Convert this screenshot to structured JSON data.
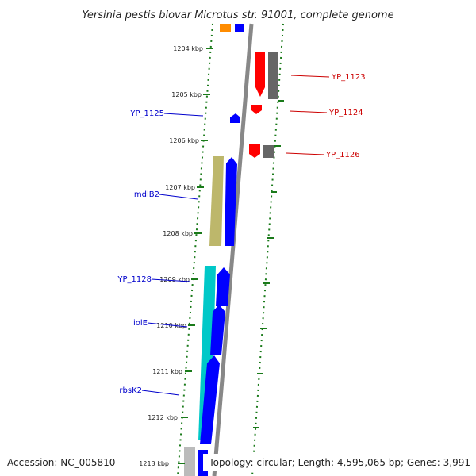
{
  "title": "Yersinia pestis biovar Microtus str. 91001, complete genome",
  "footer": {
    "accession": "Accession: NC_005810",
    "topology": "Topology: circular; Length: 4,595,065 bp; Genes: 3,991"
  },
  "colors": {
    "minus_strand_gene": "#ff0000",
    "minus_strand_cds": "#666666",
    "plus_strand_gene": "#0000ff",
    "orange_feature": "#ff8c00",
    "khaki_feature": "#bdb76b",
    "cyan_feature": "#00c8c8",
    "grey_feature": "#bbbbbb",
    "backbone": "#888888",
    "tick": "#1a7a1a",
    "plus_label": "#0000cc",
    "minus_label": "#cc0000"
  },
  "ticks": [
    "1204 kbp",
    "1205 kbp",
    "1206 kbp",
    "1207 kbp",
    "1208 kbp",
    "1209 kbp",
    "1210 kbp",
    "1211 kbp",
    "1212 kbp",
    "1213 kbp"
  ],
  "genes": {
    "minus": [
      "YP_1123",
      "YP_1124",
      "YP_1126"
    ],
    "plus": [
      "YP_1125",
      "mdlB2",
      "YP_1128",
      "iolE",
      "rbsK2"
    ]
  }
}
